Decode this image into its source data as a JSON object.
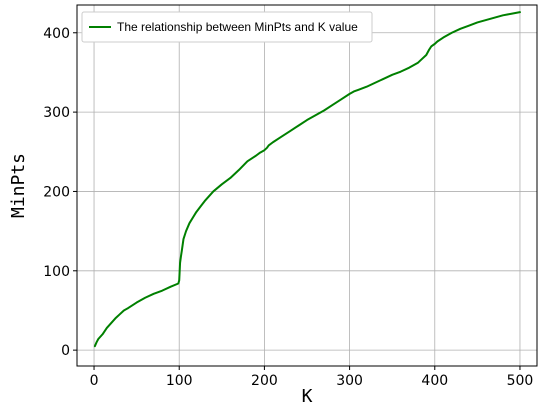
{
  "chart_data": {
    "type": "line",
    "title": "",
    "xlabel": "K",
    "ylabel": "MinPts",
    "xlim": [
      -20,
      520
    ],
    "ylim": [
      -20,
      435
    ],
    "xticks": [
      0,
      100,
      200,
      300,
      400,
      500
    ],
    "yticks": [
      0,
      100,
      200,
      300,
      400
    ],
    "grid": true,
    "legend_position": "top-left",
    "series": [
      {
        "name": "The relationship between MinPts and K value",
        "color": "#008000",
        "x": [
          1,
          3,
          5,
          10,
          15,
          20,
          25,
          30,
          35,
          40,
          50,
          60,
          70,
          80,
          90,
          99,
          100,
          101,
          102,
          103,
          105,
          108,
          112,
          116,
          120,
          125,
          130,
          140,
          150,
          160,
          170,
          180,
          190,
          195,
          200,
          203,
          205,
          210,
          220,
          230,
          240,
          250,
          260,
          270,
          280,
          290,
          300,
          305,
          310,
          320,
          330,
          340,
          350,
          360,
          370,
          380,
          385,
          390,
          393,
          396,
          400,
          403,
          410,
          420,
          430,
          440,
          450,
          460,
          470,
          480,
          490,
          500
        ],
        "y": [
          5,
          10,
          14,
          20,
          28,
          34,
          40,
          45,
          50,
          53,
          60,
          66,
          71,
          75,
          80,
          84,
          88,
          110,
          118,
          125,
          140,
          150,
          160,
          167,
          174,
          181,
          188,
          200,
          209,
          217,
          227,
          238,
          245,
          249,
          252,
          255,
          258,
          262,
          269,
          276,
          283,
          290,
          296,
          302,
          309,
          316,
          323,
          326,
          328,
          332,
          337,
          342,
          347,
          351,
          356,
          362,
          367,
          372,
          378,
          383,
          386,
          389,
          394,
          400,
          405,
          409,
          413,
          416,
          419,
          422,
          424,
          426
        ]
      }
    ]
  }
}
